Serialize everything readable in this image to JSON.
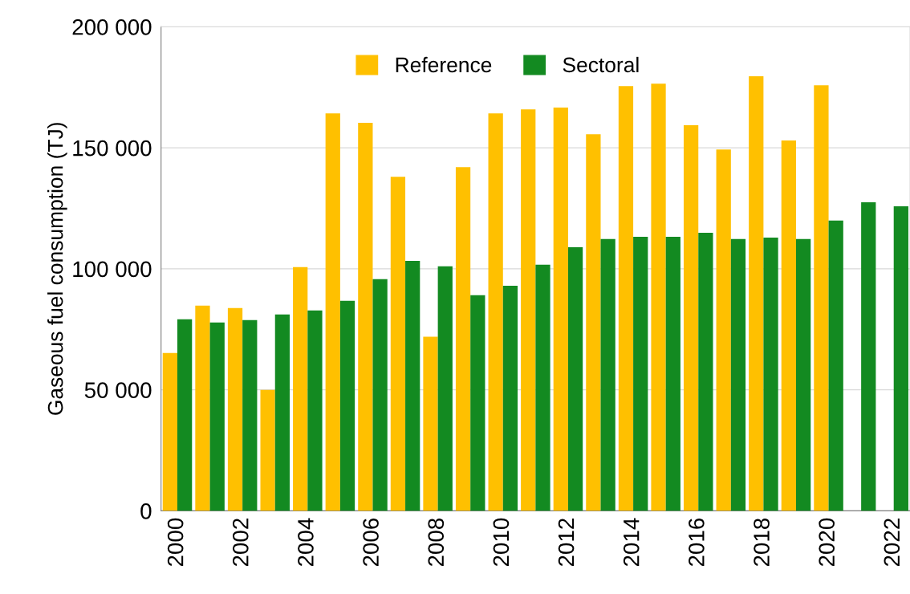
{
  "chart_data": {
    "type": "bar",
    "ylabel": "Gaseous fuel consumption (TJ)",
    "categories": [
      "2000",
      null,
      "2002",
      null,
      "2004",
      null,
      "2006",
      null,
      "2008",
      null,
      "2010",
      null,
      "2012",
      null,
      "2014",
      null,
      "2016",
      null,
      "2018",
      null,
      "2020",
      null,
      "2022"
    ],
    "series": [
      {
        "name": "Reference",
        "color": "#ffc000",
        "values": [
          65200,
          84800,
          83800,
          50000,
          100700,
          164200,
          160300,
          138000,
          71900,
          142000,
          164200,
          165900,
          166600,
          155600,
          175500,
          176500,
          159300,
          149300,
          179500,
          153000,
          175800,
          null,
          null
        ]
      },
      {
        "name": "Sectoral",
        "color": "#138a21",
        "values": [
          79100,
          77800,
          78800,
          81100,
          82800,
          86800,
          95700,
          103300,
          101000,
          89100,
          93000,
          101700,
          108900,
          112300,
          113200,
          113200,
          114900,
          112300,
          112900,
          112300,
          119900,
          127500,
          125800
        ]
      }
    ],
    "ylim": [
      0,
      200000
    ],
    "yticks": [
      0,
      {
        "value": 50000,
        "label": "50 000"
      },
      {
        "value": 100000,
        "label": "100 000"
      },
      {
        "value": 150000,
        "label": "150 000"
      },
      {
        "value": 200000,
        "label": "200 000"
      }
    ],
    "grid": "y",
    "legend": "top"
  }
}
